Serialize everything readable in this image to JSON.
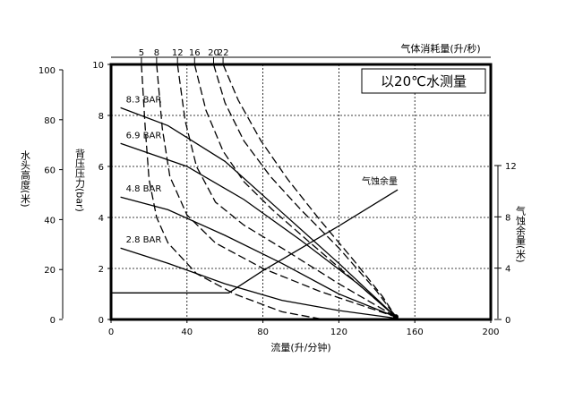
{
  "chart_data": {
    "type": "line",
    "legend_box_text": "以20℃水测量",
    "x_axis": {
      "label": "流量(升/分钟)",
      "range": [
        0,
        200
      ],
      "ticks": [
        0,
        40,
        80,
        120,
        160,
        200
      ],
      "grid": [
        40,
        80,
        120,
        160
      ]
    },
    "y_axis_left": {
      "label": "背压压力(bar)",
      "range": [
        0,
        10
      ],
      "ticks": [
        0,
        2,
        4,
        6,
        8,
        10
      ],
      "grid": [
        2,
        4,
        6,
        8
      ]
    },
    "y_axis_head": {
      "label": "水头高度(米)",
      "range": [
        0,
        100
      ],
      "ticks": [
        0,
        20,
        40,
        60,
        80,
        100
      ]
    },
    "y_axis_npsh": {
      "label": "气蚀余量(米)",
      "range": [
        0,
        12
      ],
      "ticks": [
        0,
        4,
        8,
        12
      ]
    },
    "top_axis": {
      "label": "气体消耗量(升/秒)",
      "ticks": [
        "5",
        "8",
        "12",
        "16",
        "20",
        "22"
      ]
    },
    "air_pressure_curves": [
      {
        "name": "8.3 BAR",
        "points": [
          [
            5,
            8.3
          ],
          [
            30,
            7.6
          ],
          [
            60,
            6.2
          ],
          [
            90,
            4.2
          ],
          [
            120,
            2.2
          ],
          [
            150,
            0.1
          ]
        ]
      },
      {
        "name": "6.9 BAR",
        "points": [
          [
            5,
            6.9
          ],
          [
            40,
            6.0
          ],
          [
            70,
            4.7
          ],
          [
            100,
            3.1
          ],
          [
            130,
            1.4
          ],
          [
            150,
            0.1
          ]
        ]
      },
      {
        "name": "4.8 BAR",
        "points": [
          [
            5,
            4.8
          ],
          [
            30,
            4.3
          ],
          [
            60,
            3.3
          ],
          [
            90,
            2.2
          ],
          [
            120,
            1.0
          ],
          [
            150,
            0.1
          ]
        ]
      },
      {
        "name": "2.8 BAR",
        "points": [
          [
            5,
            2.8
          ],
          [
            30,
            2.2
          ],
          [
            60,
            1.4
          ],
          [
            90,
            0.75
          ],
          [
            120,
            0.35
          ],
          [
            150,
            0.05
          ]
        ]
      }
    ],
    "air_consumption_curves": [
      {
        "name": "5",
        "points": [
          [
            16,
            10
          ],
          [
            18,
            7.5
          ],
          [
            20,
            5.5
          ],
          [
            24,
            4.0
          ],
          [
            30,
            3.0
          ],
          [
            45,
            1.8
          ],
          [
            65,
            1.0
          ],
          [
            90,
            0.3
          ],
          [
            112,
            0
          ]
        ]
      },
      {
        "name": "8",
        "points": [
          [
            24,
            10
          ],
          [
            27,
            7.5
          ],
          [
            31,
            5.6
          ],
          [
            40,
            4.1
          ],
          [
            55,
            3.0
          ],
          [
            80,
            2.0
          ],
          [
            110,
            1.1
          ],
          [
            150,
            0.1
          ]
        ]
      },
      {
        "name": "12",
        "points": [
          [
            35,
            10
          ],
          [
            39,
            7.8
          ],
          [
            45,
            6.0
          ],
          [
            55,
            4.6
          ],
          [
            70,
            3.7
          ],
          [
            90,
            2.8
          ],
          [
            120,
            1.4
          ],
          [
            150,
            0.1
          ]
        ]
      },
      {
        "name": "16",
        "points": [
          [
            44,
            10
          ],
          [
            50,
            8.2
          ],
          [
            59,
            6.6
          ],
          [
            70,
            5.4
          ],
          [
            85,
            4.3
          ],
          [
            105,
            3.0
          ],
          [
            130,
            1.4
          ],
          [
            150,
            0.1
          ]
        ]
      },
      {
        "name": "20",
        "points": [
          [
            54,
            10
          ],
          [
            60,
            8.5
          ],
          [
            70,
            7.0
          ],
          [
            84,
            5.6
          ],
          [
            100,
            4.3
          ],
          [
            120,
            2.8
          ],
          [
            140,
            1.1
          ],
          [
            150,
            0.1
          ]
        ]
      },
      {
        "name": "22",
        "points": [
          [
            59,
            10
          ],
          [
            67,
            8.6
          ],
          [
            79,
            7.0
          ],
          [
            93,
            5.5
          ],
          [
            110,
            3.9
          ],
          [
            128,
            2.3
          ],
          [
            143,
            0.9
          ],
          [
            150,
            0.1
          ]
        ]
      }
    ],
    "npsh_curve": {
      "name": "气蚀余量",
      "points": [
        [
          0,
          1.25
        ],
        [
          62,
          1.25
        ],
        [
          80,
          2.3
        ],
        [
          120,
          4.4
        ],
        [
          151,
          6.1
        ]
      ]
    }
  }
}
